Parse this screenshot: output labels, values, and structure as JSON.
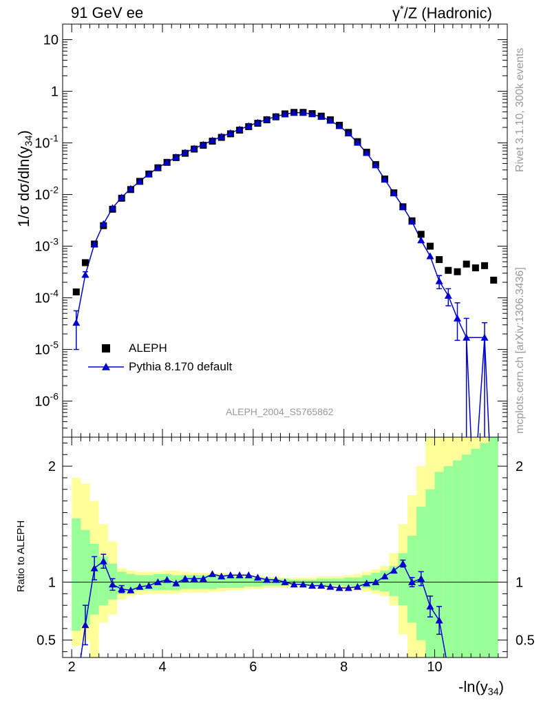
{
  "header": {
    "left_title": "91 GeV ee",
    "right_title_prefix": "γ",
    "right_title_sup": "*",
    "right_title_suffix": "/Z (Hadronic)"
  },
  "side_text": {
    "rivet": "Rivet 3.1.10,  300k events",
    "mcplots": "mcplots.cern.ch [arXiv:1306.3436]"
  },
  "analysis_label": "ALEPH_2004_S5765862",
  "y_axis_main": {
    "prefix": "1/σ  dσ/dln(y",
    "sub": "34",
    "suffix": ")"
  },
  "y_axis_ratio": "Ratio to ALEPH",
  "x_axis": {
    "prefix": "-ln(y",
    "sub": "34",
    "suffix": ")"
  },
  "legend": {
    "data_label": "ALEPH",
    "mc_label": "Pythia 8.170 default"
  },
  "colors": {
    "data": "#000000",
    "mc": "#0000cc",
    "band_inner": "#99ff99",
    "band_outer": "#ffff99",
    "side_text": "#999999"
  },
  "chart_data": [
    {
      "type": "scatter",
      "title": "",
      "xlabel": "-ln(y34)",
      "ylabel": "1/σ dσ/dln(y34)",
      "yscale": "log",
      "xlim": [
        1.8,
        11.6
      ],
      "ylim": [
        2e-07,
        20
      ],
      "x_ticks": [
        "2",
        "4",
        "6",
        "8",
        "10"
      ],
      "y_ticks": [
        "10^-6",
        "10^-5",
        "10^-4",
        "10^-3",
        "10^-2",
        "10^-1",
        "1",
        "10"
      ],
      "series": [
        {
          "name": "ALEPH",
          "x": [
            2.1,
            2.3,
            2.5,
            2.7,
            2.9,
            3.1,
            3.3,
            3.5,
            3.7,
            3.9,
            4.1,
            4.3,
            4.5,
            4.7,
            4.9,
            5.1,
            5.3,
            5.5,
            5.7,
            5.9,
            6.1,
            6.3,
            6.5,
            6.7,
            6.9,
            7.1,
            7.3,
            7.5,
            7.7,
            7.9,
            8.1,
            8.3,
            8.5,
            8.7,
            8.9,
            9.1,
            9.3,
            9.5,
            9.7,
            9.9,
            10.1,
            10.3,
            10.5,
            10.7,
            10.9,
            11.1,
            11.3
          ],
          "y": [
            0.00013,
            0.00048,
            0.0011,
            0.0025,
            0.0052,
            0.0085,
            0.0125,
            0.018,
            0.025,
            0.033,
            0.042,
            0.052,
            0.063,
            0.076,
            0.09,
            0.108,
            0.128,
            0.15,
            0.177,
            0.207,
            0.24,
            0.28,
            0.32,
            0.365,
            0.39,
            0.39,
            0.37,
            0.33,
            0.28,
            0.22,
            0.16,
            0.106,
            0.066,
            0.038,
            0.02,
            0.0108,
            0.0058,
            0.0031,
            0.0017,
            0.001,
            0.00055,
            0.00034,
            0.00032,
            0.00045,
            0.00038,
            0.00042,
            0.00022
          ]
        },
        {
          "name": "Pythia 8.170 default",
          "x": [
            2.1,
            2.3,
            2.5,
            2.7,
            2.9,
            3.1,
            3.3,
            3.5,
            3.7,
            3.9,
            4.1,
            4.3,
            4.5,
            4.7,
            4.9,
            5.1,
            5.3,
            5.5,
            5.7,
            5.9,
            6.1,
            6.3,
            6.5,
            6.7,
            6.9,
            7.1,
            7.3,
            7.5,
            7.7,
            7.9,
            8.1,
            8.3,
            8.5,
            8.7,
            8.9,
            9.1,
            9.3,
            9.5,
            9.7,
            9.9,
            10.1,
            10.3,
            10.5,
            10.7,
            10.9,
            11.1
          ],
          "y": [
            3.3e-05,
            0.00028,
            0.0011,
            0.0027,
            0.0055,
            0.0088,
            0.013,
            0.018,
            0.025,
            0.033,
            0.042,
            0.053,
            0.065,
            0.078,
            0.093,
            0.112,
            0.133,
            0.156,
            0.183,
            0.213,
            0.248,
            0.285,
            0.325,
            0.36,
            0.385,
            0.385,
            0.36,
            0.32,
            0.27,
            0.212,
            0.153,
            0.101,
            0.064,
            0.037,
            0.0195,
            0.0106,
            0.0058,
            0.003,
            0.0013,
            0.00064,
            0.00021,
            0.00011,
            4e-05,
            1.7e-05,
            null,
            1.7e-05
          ],
          "err_low": [
            2.3e-05,
            2e-05,
            0,
            0,
            0,
            0,
            0,
            0,
            0,
            0,
            0,
            0,
            0,
            0,
            0,
            0,
            0,
            0,
            0,
            0,
            0,
            0,
            0,
            0,
            0,
            0,
            0,
            0,
            0,
            0,
            0,
            0,
            0,
            0,
            0,
            0,
            0,
            0,
            0,
            0,
            6e-05,
            4e-05,
            2.5e-05,
            1.69e-05,
            null,
            1.69e-05
          ],
          "err_high": [
            2.3e-05,
            4e-05,
            0,
            0,
            0,
            0,
            0,
            0,
            0,
            0,
            0,
            0,
            0,
            0,
            0,
            0,
            0,
            0,
            0,
            0,
            0,
            0,
            0,
            0,
            0,
            0,
            0,
            0,
            0,
            0,
            0,
            0,
            0,
            0,
            0,
            0,
            0,
            0,
            0,
            0,
            6e-05,
            4e-05,
            4e-05,
            2.3e-05,
            null,
            1.6e-05
          ]
        }
      ]
    },
    {
      "type": "line",
      "title": "",
      "xlabel": "-ln(y34)",
      "ylabel": "Ratio to ALEPH",
      "xlim": [
        1.8,
        11.6
      ],
      "ylim": [
        0.35,
        2.25
      ],
      "x_ticks": [
        "2",
        "4",
        "6",
        "8",
        "10"
      ],
      "y_ticks": [
        "0.5",
        "1",
        "2"
      ],
      "reference_line": 1,
      "band_edges": [
        2.0,
        2.2,
        2.4,
        2.6,
        2.8,
        3.0,
        3.2,
        3.4,
        3.6,
        3.8,
        4.0,
        4.2,
        4.4,
        4.6,
        4.8,
        5.0,
        5.2,
        5.4,
        5.6,
        5.8,
        6.0,
        6.2,
        6.4,
        6.6,
        6.8,
        7.0,
        7.2,
        7.4,
        7.6,
        7.8,
        8.0,
        8.2,
        8.4,
        8.6,
        8.8,
        9.0,
        9.2,
        9.4,
        9.6,
        9.8,
        10.0,
        10.2,
        10.4,
        10.6,
        10.8,
        11.0,
        11.2,
        11.4
      ],
      "inner_band": [
        [
          0.58,
          1.55
        ],
        [
          0.63,
          1.45
        ],
        [
          0.72,
          1.33
        ],
        [
          0.8,
          1.22
        ],
        [
          0.85,
          1.16
        ],
        [
          0.9,
          1.09
        ],
        [
          0.92,
          1.07
        ],
        [
          0.93,
          1.06
        ],
        [
          0.93,
          1.06
        ],
        [
          0.93,
          1.07
        ],
        [
          0.93,
          1.07
        ],
        [
          0.93,
          1.06
        ],
        [
          0.94,
          1.06
        ],
        [
          0.94,
          1.06
        ],
        [
          0.94,
          1.06
        ],
        [
          0.94,
          1.06
        ],
        [
          0.95,
          1.06
        ],
        [
          0.95,
          1.05
        ],
        [
          0.95,
          1.05
        ],
        [
          0.96,
          1.04
        ],
        [
          0.96,
          1.04
        ],
        [
          0.97,
          1.04
        ],
        [
          0.97,
          1.03
        ],
        [
          0.97,
          1.03
        ],
        [
          0.98,
          1.02
        ],
        [
          0.98,
          1.02
        ],
        [
          0.98,
          1.02
        ],
        [
          0.97,
          1.03
        ],
        [
          0.97,
          1.03
        ],
        [
          0.97,
          1.03
        ],
        [
          0.96,
          1.04
        ],
        [
          0.96,
          1.04
        ],
        [
          0.95,
          1.06
        ],
        [
          0.93,
          1.08
        ],
        [
          0.92,
          1.1
        ],
        [
          0.88,
          1.14
        ],
        [
          0.8,
          1.25
        ],
        [
          0.65,
          1.4
        ],
        [
          0.5,
          1.65
        ],
        [
          0.35,
          1.8
        ],
        [
          0.35,
          1.95
        ],
        [
          0.35,
          2.0
        ],
        [
          0.35,
          2.05
        ],
        [
          0.35,
          2.1
        ],
        [
          0.35,
          2.15
        ],
        [
          0.35,
          2.2
        ],
        [
          0.35,
          2.25
        ]
      ],
      "outer_band": [
        [
          0.45,
          1.9
        ],
        [
          0.5,
          1.85
        ],
        [
          0.35,
          1.7
        ],
        [
          0.65,
          1.5
        ],
        [
          0.72,
          1.35
        ],
        [
          0.85,
          1.12
        ],
        [
          0.88,
          1.1
        ],
        [
          0.89,
          1.09
        ],
        [
          0.9,
          1.09
        ],
        [
          0.9,
          1.09
        ],
        [
          0.9,
          1.1
        ],
        [
          0.9,
          1.1
        ],
        [
          0.91,
          1.09
        ],
        [
          0.91,
          1.08
        ],
        [
          0.91,
          1.08
        ],
        [
          0.92,
          1.08
        ],
        [
          0.92,
          1.08
        ],
        [
          0.93,
          1.07
        ],
        [
          0.93,
          1.07
        ],
        [
          0.94,
          1.06
        ],
        [
          0.94,
          1.06
        ],
        [
          0.95,
          1.05
        ],
        [
          0.95,
          1.05
        ],
        [
          0.95,
          1.04
        ],
        [
          0.96,
          1.04
        ],
        [
          0.96,
          1.04
        ],
        [
          0.96,
          1.04
        ],
        [
          0.95,
          1.05
        ],
        [
          0.95,
          1.05
        ],
        [
          0.95,
          1.05
        ],
        [
          0.94,
          1.06
        ],
        [
          0.93,
          1.07
        ],
        [
          0.92,
          1.09
        ],
        [
          0.9,
          1.11
        ],
        [
          0.88,
          1.14
        ],
        [
          0.8,
          1.25
        ],
        [
          0.55,
          1.5
        ],
        [
          0.35,
          1.75
        ],
        [
          0.35,
          2.0
        ],
        [
          0.35,
          2.25
        ],
        [
          0.35,
          2.25
        ],
        [
          0.35,
          2.25
        ],
        [
          0.35,
          2.25
        ],
        [
          0.35,
          2.25
        ],
        [
          0.35,
          2.25
        ],
        [
          0.35,
          2.25
        ],
        [
          0.35,
          2.25
        ]
      ],
      "series": [
        {
          "name": "Pythia 8.170 default / ALEPH",
          "x": [
            2.3,
            2.5,
            2.7,
            2.9,
            3.1,
            3.3,
            3.5,
            3.7,
            3.9,
            4.1,
            4.3,
            4.5,
            4.7,
            4.9,
            5.1,
            5.3,
            5.5,
            5.7,
            5.9,
            6.1,
            6.3,
            6.5,
            6.7,
            6.9,
            7.1,
            7.3,
            7.5,
            7.7,
            7.9,
            8.1,
            8.3,
            8.5,
            8.7,
            8.9,
            9.1,
            9.3,
            9.5,
            9.7,
            9.9,
            10.1
          ],
          "y": [
            0.63,
            1.12,
            1.18,
            0.98,
            0.94,
            0.93,
            0.96,
            0.97,
            1.0,
            1.02,
            0.99,
            1.03,
            1.03,
            1.03,
            1.07,
            1.05,
            1.06,
            1.06,
            1.06,
            1.04,
            1.02,
            1.02,
            1.0,
            0.98,
            0.98,
            0.97,
            0.97,
            0.96,
            0.95,
            0.95,
            0.96,
            0.99,
            1.0,
            1.05,
            1.1,
            1.16,
            1.0,
            1.03,
            0.79,
            0.67
          ],
          "err": [
            0.17,
            0.1,
            0.06,
            0.05,
            0.03,
            0.02,
            0.02,
            0.02,
            0.01,
            0.01,
            0.01,
            0.01,
            0.01,
            0.01,
            0.01,
            0.01,
            0.01,
            0.01,
            0.01,
            0.01,
            0.01,
            0.01,
            0.01,
            0.01,
            0.01,
            0.01,
            0.01,
            0.01,
            0.01,
            0.01,
            0.01,
            0.01,
            0.01,
            0.01,
            0.02,
            0.03,
            0.04,
            0.06,
            0.09,
            0.12
          ]
        }
      ]
    }
  ]
}
